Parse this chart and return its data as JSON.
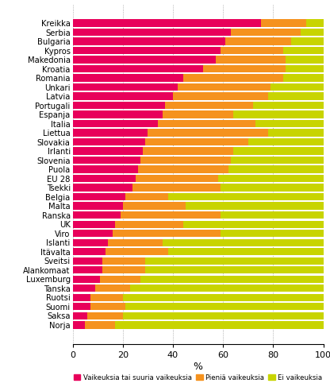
{
  "countries": [
    "Kreikka",
    "Serbia",
    "Bulgaria",
    "Kypros",
    "Makedonia",
    "Kroatia",
    "Romania",
    "Unkari",
    "Latvia",
    "Portugali",
    "Espanja",
    "Italia",
    "Liettua",
    "Slovakia",
    "Irlanti",
    "Slovenia",
    "Puola",
    "EU 28",
    "Tsekki",
    "Belgia",
    "Malta",
    "Ranska",
    "UK",
    "Viro",
    "Islanti",
    "Itävalta",
    "Sveitsi",
    "Alankomaat",
    "Luxemburg",
    "Tanska",
    "Ruotsi",
    "Suomi",
    "Saksa",
    "Norja"
  ],
  "vaikeuksia": [
    75,
    63,
    61,
    59,
    57,
    52,
    44,
    42,
    40,
    37,
    36,
    34,
    30,
    29,
    28,
    27,
    26,
    25,
    24,
    21,
    20,
    19,
    17,
    16,
    14,
    13,
    12,
    12,
    11,
    9,
    7,
    7,
    6,
    5
  ],
  "pieniä": [
    18,
    28,
    26,
    25,
    28,
    33,
    40,
    37,
    38,
    35,
    28,
    39,
    48,
    41,
    36,
    36,
    36,
    33,
    35,
    17,
    25,
    40,
    27,
    43,
    22,
    25,
    17,
    17,
    16,
    14,
    13,
    14,
    14,
    12
  ],
  "ei": [
    7,
    9,
    13,
    16,
    15,
    15,
    16,
    21,
    22,
    28,
    36,
    27,
    22,
    30,
    36,
    37,
    38,
    42,
    41,
    62,
    55,
    41,
    56,
    41,
    64,
    62,
    71,
    71,
    73,
    77,
    80,
    79,
    80,
    83
  ],
  "colors": [
    "#e8005a",
    "#f5921e",
    "#c8d400"
  ],
  "legend_labels": [
    "Vaikeuksia tai suuria vaikeuksia",
    "Pieniä vaikeuksia",
    "Ei vaikeuksia"
  ],
  "xlabel": "%",
  "xlim": [
    0,
    100
  ],
  "xticks": [
    0,
    20,
    40,
    60,
    80,
    100
  ],
  "bar_height": 0.82,
  "figsize": [
    4.16,
    4.92
  ],
  "dpi": 100
}
